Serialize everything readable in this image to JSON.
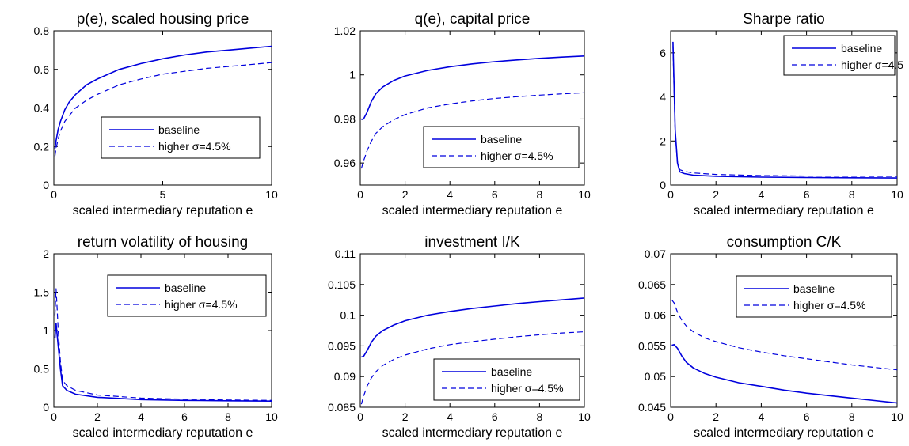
{
  "colors": {
    "line": "#0000dd",
    "axis": "#000000",
    "background": "#ffffff"
  },
  "chart_data": [
    {
      "type": "line",
      "title": "p(e), scaled housing price",
      "xlabel": "scaled intermediary reputation e",
      "ylabel": "",
      "xlim": [
        0,
        10
      ],
      "ylim": [
        0,
        0.8
      ],
      "xticks": [
        "0",
        "5",
        "10"
      ],
      "yticks": [
        "0",
        "0.2",
        "0.4",
        "0.6",
        "0.8"
      ],
      "grid": false,
      "legend_position": "center-right",
      "series": [
        {
          "name": "baseline",
          "style": "solid",
          "x": [
            0.05,
            0.1,
            0.2,
            0.3,
            0.5,
            0.7,
            1,
            1.5,
            2,
            3,
            4,
            5,
            6,
            7,
            8,
            9,
            10
          ],
          "y": [
            0.19,
            0.23,
            0.29,
            0.33,
            0.39,
            0.43,
            0.47,
            0.52,
            0.55,
            0.6,
            0.63,
            0.655,
            0.675,
            0.69,
            0.7,
            0.71,
            0.72
          ]
        },
        {
          "name": "higher σ=4.5%",
          "style": "dashed",
          "x": [
            0.05,
            0.1,
            0.2,
            0.3,
            0.5,
            0.7,
            1,
            1.5,
            2,
            3,
            4,
            5,
            6,
            7,
            8,
            9,
            10
          ],
          "y": [
            0.15,
            0.19,
            0.24,
            0.28,
            0.33,
            0.36,
            0.4,
            0.44,
            0.47,
            0.52,
            0.55,
            0.575,
            0.59,
            0.605,
            0.615,
            0.625,
            0.635
          ]
        }
      ]
    },
    {
      "type": "line",
      "title": "q(e), capital price",
      "xlabel": "scaled intermediary reputation e",
      "ylabel": "",
      "xlim": [
        0,
        10
      ],
      "ylim": [
        0.95,
        1.02
      ],
      "xticks": [
        "0",
        "2",
        "4",
        "6",
        "8",
        "10"
      ],
      "yticks": [
        "0.96",
        "0.98",
        "1",
        "1.02"
      ],
      "grid": false,
      "legend_position": "center-right",
      "series": [
        {
          "name": "baseline",
          "style": "solid",
          "x": [
            0.05,
            0.15,
            0.3,
            0.5,
            0.7,
            1,
            1.5,
            2,
            3,
            4,
            5,
            6,
            7,
            8,
            9,
            10
          ],
          "y": [
            0.9797,
            0.98,
            0.983,
            0.988,
            0.9915,
            0.9945,
            0.9975,
            0.9995,
            1.002,
            1.0037,
            1.005,
            1.006,
            1.0068,
            1.0075,
            1.0081,
            1.0086
          ]
        },
        {
          "name": "higher σ=4.5%",
          "style": "dashed",
          "x": [
            0.05,
            0.15,
            0.3,
            0.5,
            0.7,
            1,
            1.5,
            2,
            3,
            4,
            5,
            6,
            7,
            8,
            9,
            10
          ],
          "y": [
            0.9575,
            0.961,
            0.9655,
            0.97,
            0.9735,
            0.9765,
            0.9797,
            0.982,
            0.985,
            0.9868,
            0.9882,
            0.9893,
            0.9901,
            0.9908,
            0.9914,
            0.9919
          ]
        }
      ]
    },
    {
      "type": "line",
      "title": "Sharpe ratio",
      "xlabel": "scaled intermediary reputation e",
      "ylabel": "",
      "xlim": [
        0,
        10
      ],
      "ylim": [
        0,
        7
      ],
      "xticks": [
        "0",
        "2",
        "4",
        "6",
        "8",
        "10"
      ],
      "yticks": [
        "0",
        "2",
        "4",
        "6"
      ],
      "grid": false,
      "legend_position": "top-right",
      "series": [
        {
          "name": "baseline",
          "style": "solid",
          "x": [
            0.1,
            0.15,
            0.2,
            0.3,
            0.4,
            0.6,
            1,
            2,
            4,
            6,
            8,
            10
          ],
          "y": [
            6.5,
            4.5,
            2.5,
            1.0,
            0.6,
            0.52,
            0.45,
            0.4,
            0.36,
            0.34,
            0.33,
            0.32
          ]
        },
        {
          "name": "higher σ=4.5",
          "style": "dashed",
          "x": [
            0.1,
            0.15,
            0.2,
            0.3,
            0.4,
            0.6,
            1,
            2,
            4,
            6,
            8,
            10
          ],
          "y": [
            6.3,
            4.3,
            2.4,
            1.0,
            0.7,
            0.62,
            0.55,
            0.48,
            0.43,
            0.41,
            0.4,
            0.39
          ]
        }
      ]
    },
    {
      "type": "line",
      "title": "return volatility of housing",
      "xlabel": "scaled intermediary reputation e",
      "ylabel": "",
      "xlim": [
        0,
        10
      ],
      "ylim": [
        0,
        2
      ],
      "xticks": [
        "0",
        "2",
        "4",
        "6",
        "8",
        "10"
      ],
      "yticks": [
        "0",
        "0.5",
        "1",
        "1.5",
        "2"
      ],
      "grid": false,
      "legend_position": "top-right",
      "series": [
        {
          "name": "baseline",
          "style": "solid",
          "x": [
            0.05,
            0.1,
            0.15,
            0.2,
            0.3,
            0.4,
            0.6,
            1,
            2,
            4,
            6,
            8,
            10
          ],
          "y": [
            0.9,
            1.1,
            0.95,
            0.8,
            0.5,
            0.28,
            0.22,
            0.17,
            0.13,
            0.1,
            0.09,
            0.085,
            0.08
          ]
        },
        {
          "name": "higher σ=4.5%",
          "style": "dashed",
          "x": [
            0.05,
            0.1,
            0.15,
            0.2,
            0.3,
            0.4,
            0.6,
            1,
            2,
            4,
            6,
            8,
            10
          ],
          "y": [
            1.2,
            1.55,
            1.3,
            1.0,
            0.6,
            0.35,
            0.28,
            0.22,
            0.16,
            0.12,
            0.105,
            0.095,
            0.09
          ]
        }
      ]
    },
    {
      "type": "line",
      "title": "investment I/K",
      "xlabel": "scaled intermediary reputation e",
      "ylabel": "",
      "xlim": [
        0,
        10
      ],
      "ylim": [
        0.085,
        0.11
      ],
      "xticks": [
        "0",
        "2",
        "4",
        "6",
        "8",
        "10"
      ],
      "yticks": [
        "0.085",
        "0.09",
        "0.095",
        "0.1",
        "0.105",
        "0.11"
      ],
      "grid": false,
      "legend_position": "bottom-right",
      "series": [
        {
          "name": "baseline",
          "style": "solid",
          "x": [
            0.05,
            0.15,
            0.3,
            0.5,
            0.7,
            1,
            1.5,
            2,
            3,
            4,
            5,
            6,
            7,
            8,
            9,
            10
          ],
          "y": [
            0.0932,
            0.0933,
            0.0942,
            0.0956,
            0.0966,
            0.0975,
            0.0984,
            0.0991,
            0.1,
            0.1006,
            0.1011,
            0.1015,
            0.1019,
            0.1022,
            0.1025,
            0.1028
          ]
        },
        {
          "name": "higher σ=4.5%",
          "style": "dashed",
          "x": [
            0.05,
            0.15,
            0.3,
            0.5,
            0.7,
            1,
            1.5,
            2,
            3,
            4,
            5,
            6,
            7,
            8,
            9,
            10
          ],
          "y": [
            0.0855,
            0.0868,
            0.0884,
            0.0898,
            0.0908,
            0.0918,
            0.0928,
            0.0935,
            0.0945,
            0.0952,
            0.0957,
            0.0961,
            0.0965,
            0.0968,
            0.0971,
            0.0973
          ]
        }
      ]
    },
    {
      "type": "line",
      "title": "consumption C/K",
      "xlabel": "scaled intermediary reputation e",
      "ylabel": "",
      "xlim": [
        0,
        10
      ],
      "ylim": [
        0.045,
        0.07
      ],
      "xticks": [
        "0",
        "2",
        "4",
        "6",
        "8",
        "10"
      ],
      "yticks": [
        "0.045",
        "0.05",
        "0.055",
        "0.06",
        "0.065",
        "0.07"
      ],
      "grid": false,
      "legend_position": "top-right",
      "series": [
        {
          "name": "baseline",
          "style": "solid",
          "x": [
            0.05,
            0.15,
            0.3,
            0.5,
            0.7,
            1,
            1.5,
            2,
            3,
            4,
            5,
            6,
            7,
            8,
            9,
            10
          ],
          "y": [
            0.0551,
            0.0552,
            0.0546,
            0.0533,
            0.0523,
            0.0514,
            0.0505,
            0.0499,
            0.049,
            0.0484,
            0.0478,
            0.0473,
            0.0469,
            0.0465,
            0.0461,
            0.0457
          ]
        },
        {
          "name": "higher σ=4.5%",
          "style": "dashed",
          "x": [
            0.05,
            0.15,
            0.3,
            0.5,
            0.7,
            1,
            1.5,
            2,
            3,
            4,
            5,
            6,
            7,
            8,
            9,
            10
          ],
          "y": [
            0.0625,
            0.062,
            0.0605,
            0.0591,
            0.0582,
            0.0573,
            0.0563,
            0.0557,
            0.0547,
            0.054,
            0.0534,
            0.0529,
            0.0524,
            0.0519,
            0.0515,
            0.0511
          ]
        }
      ]
    }
  ]
}
